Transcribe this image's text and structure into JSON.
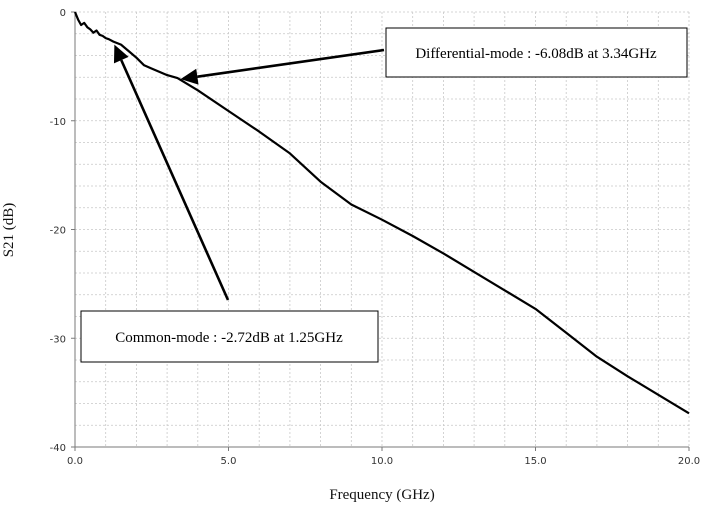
{
  "chart_data": {
    "type": "line",
    "title": "",
    "xlabel": "Frequency (GHz)",
    "ylabel": "S21 (dB)",
    "xlim": [
      0,
      20
    ],
    "ylim": [
      -40,
      0
    ],
    "x_ticks": [
      "0.0",
      "5.0",
      "10.0",
      "15.0",
      "20.0"
    ],
    "y_ticks": [
      "0",
      "-10",
      "-20",
      "-30",
      "-40"
    ],
    "grid": true,
    "series": [
      {
        "x": [
          0.0,
          0.1,
          0.2,
          0.3,
          0.4,
          0.5,
          0.6,
          0.7,
          0.8,
          0.9,
          1.0,
          1.1,
          1.25,
          1.5,
          1.75,
          2.0,
          2.25,
          2.5,
          3.0,
          3.34,
          4.0,
          5.0,
          6.0,
          7.0,
          8.0,
          9.0,
          10.0,
          11.0,
          12.0,
          13.0,
          14.0,
          15.0,
          16.0,
          17.0,
          18.0,
          19.0,
          20.0
        ],
        "y": [
          0,
          -0.7,
          -1.2,
          -1.0,
          -1.4,
          -1.6,
          -1.9,
          -1.7,
          -2.1,
          -2.2,
          -2.4,
          -2.5,
          -2.72,
          -3.0,
          -3.6,
          -4.2,
          -4.9,
          -5.2,
          -5.8,
          -6.08,
          -7.2,
          -9.1,
          -11.0,
          -13.0,
          -15.6,
          -17.7,
          -19.1,
          -20.6,
          -22.2,
          -23.9,
          -25.6,
          -27.3,
          -29.5,
          -31.7,
          -33.5,
          -35.2,
          -36.9
        ]
      }
    ],
    "annotations": [
      {
        "text": "Differential-mode : -6.08dB at 3.34GHz",
        "x": 3.34,
        "y": -6.08
      },
      {
        "text": "Common-mode : -2.72dB at 1.25GHz",
        "x": 1.25,
        "y": -2.72
      }
    ]
  }
}
